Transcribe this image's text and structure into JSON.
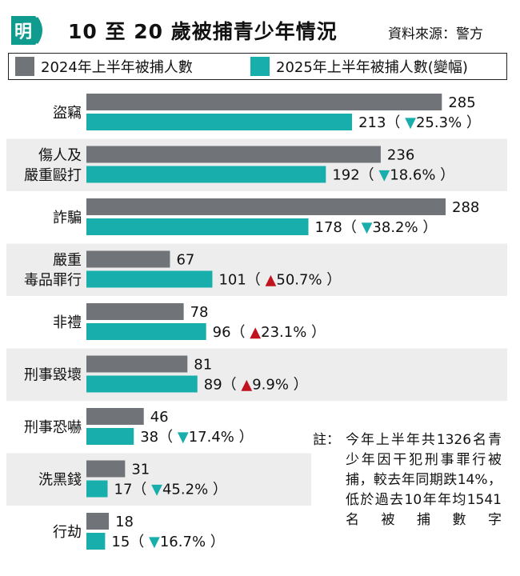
{
  "header": {
    "logo_text": "明",
    "title": "10 至 20 歲被捕青少年情況",
    "source": "資料來源：警方"
  },
  "colors": {
    "series_2024": "#707377",
    "series_2025": "#17aeac",
    "stripe": "#ededed",
    "increase": "#c0131d",
    "decrease": "#17aeac",
    "logo": "#0f9b8e"
  },
  "legend": [
    {
      "label": "2024年上半年被捕人數"
    },
    {
      "label": "2025年上半年被捕人數(變幅)"
    }
  ],
  "chart_data": {
    "type": "bar",
    "orientation": "horizontal",
    "categories": [
      "盜竊",
      "傷人及嚴重毆打",
      "詐騙",
      "嚴重毒品罪行",
      "非禮",
      "刑事毀壞",
      "刑事恐嚇",
      "洗黑錢",
      "行劫"
    ],
    "category_lines": [
      [
        "盜竊"
      ],
      [
        "傷人及",
        "嚴重毆打"
      ],
      [
        "詐騙"
      ],
      [
        "嚴重",
        "毒品罪行"
      ],
      [
        "非禮"
      ],
      [
        "刑事毀壞"
      ],
      [
        "刑事恐嚇"
      ],
      [
        "洗黑錢"
      ],
      [
        "行劫"
      ]
    ],
    "series": [
      {
        "name": "2024年上半年被捕人數",
        "values": [
          285,
          236,
          288,
          67,
          78,
          81,
          46,
          31,
          18
        ]
      },
      {
        "name": "2025年上半年被捕人數",
        "values": [
          213,
          192,
          178,
          101,
          96,
          89,
          38,
          17,
          15
        ]
      }
    ],
    "changes": [
      {
        "direction": "down",
        "text": "25.3%"
      },
      {
        "direction": "down",
        "text": "18.6%"
      },
      {
        "direction": "down",
        "text": "38.2%"
      },
      {
        "direction": "up",
        "text": "50.7%"
      },
      {
        "direction": "up",
        "text": "23.1%"
      },
      {
        "direction": "up",
        "text": "9.9%"
      },
      {
        "direction": "down",
        "text": "17.4%"
      },
      {
        "direction": "down",
        "text": "45.2%"
      },
      {
        "direction": "down",
        "text": "16.7%"
      }
    ],
    "xlim": [
      0,
      300
    ]
  },
  "note": {
    "label": "註：",
    "text": "今年上半年共1326名青少年因干犯刑事罪行被捕，較去年同期跌14%，低於過去10年年均1541名被捕數字"
  }
}
